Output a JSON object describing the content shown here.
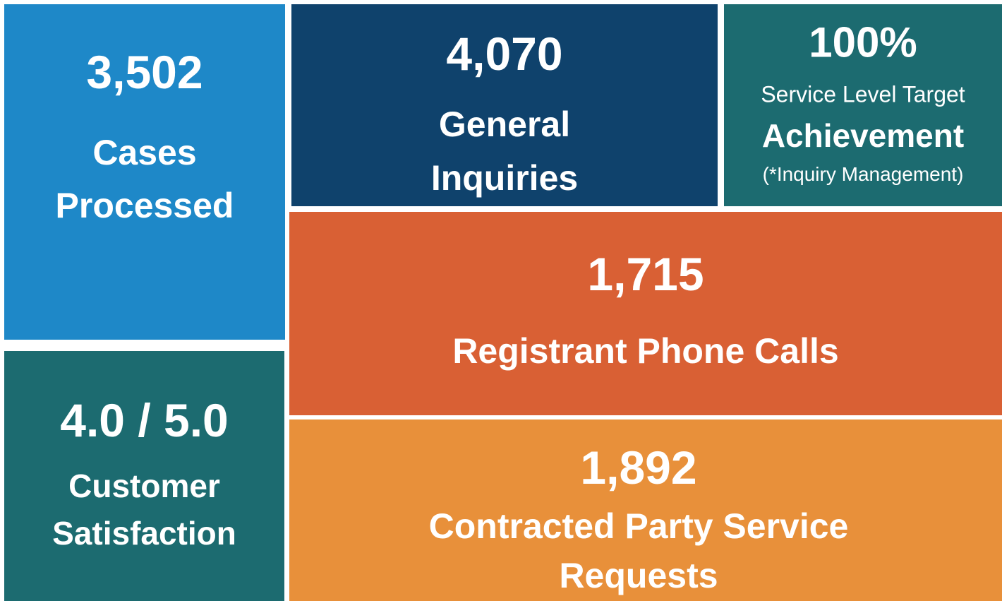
{
  "tiles": [
    {
      "value": "3,502",
      "lines": [
        "Cases",
        "Processed"
      ]
    },
    {
      "value": "4,070",
      "lines": [
        "General",
        "Inquiries"
      ]
    },
    {
      "value": "100%",
      "lines": [
        "Service Level Target",
        "Achievement",
        "(*Inquiry Management)"
      ]
    },
    {
      "value": "4.0 / 5.0",
      "lines": [
        "Customer",
        "Satisfaction"
      ]
    },
    {
      "value": "1,715",
      "lines": [
        "Registrant Phone Calls"
      ]
    },
    {
      "value": "1,892",
      "lines": [
        "Contracted Party Service",
        "Requests"
      ]
    }
  ]
}
